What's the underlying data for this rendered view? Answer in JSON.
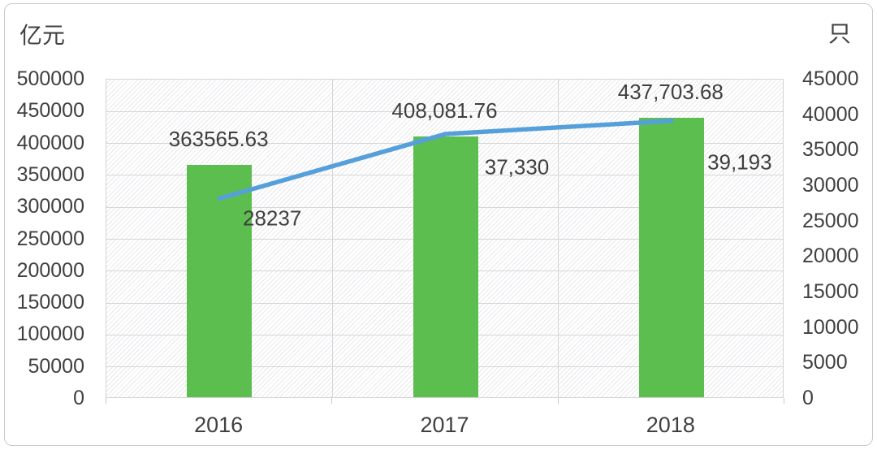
{
  "page": {
    "background": "#ffffff",
    "card_border_color": "#c9c9c9"
  },
  "chart_data": {
    "type": "combo",
    "categories": [
      "2016",
      "2017",
      "2018"
    ],
    "series": [
      {
        "id": "bar-series",
        "type": "bar",
        "axis": "left",
        "color": "#5CBE4F",
        "values": [
          363565.63,
          408081.76,
          437703.68
        ],
        "data_labels": [
          "363565.63",
          "408,081.76",
          "437,703.68"
        ]
      },
      {
        "id": "line-series",
        "type": "line",
        "axis": "right",
        "color": "#55A0DA",
        "values": [
          28237,
          37330,
          39193
        ],
        "data_labels": [
          "28237",
          "37,330",
          "39,193"
        ]
      }
    ],
    "left_axis": {
      "title": "亿元",
      "min": 0,
      "max": 500000,
      "step": 50000,
      "tick_labels": [
        "500000",
        "450000",
        "400000",
        "350000",
        "300000",
        "250000",
        "200000",
        "150000",
        "100000",
        "50000",
        "0"
      ]
    },
    "right_axis": {
      "title": "只",
      "min": 0,
      "max": 45000,
      "step": 5000,
      "tick_labels": [
        "45000",
        "40000",
        "35000",
        "30000",
        "25000",
        "20000",
        "15000",
        "10000",
        "5000",
        "0"
      ]
    },
    "grid": {
      "horizontal": true,
      "vertical": true,
      "color": "#d6d6d6"
    },
    "plot_background": {
      "hatched": true,
      "stripe_color": "#e9e9ed"
    },
    "legend": "none"
  }
}
